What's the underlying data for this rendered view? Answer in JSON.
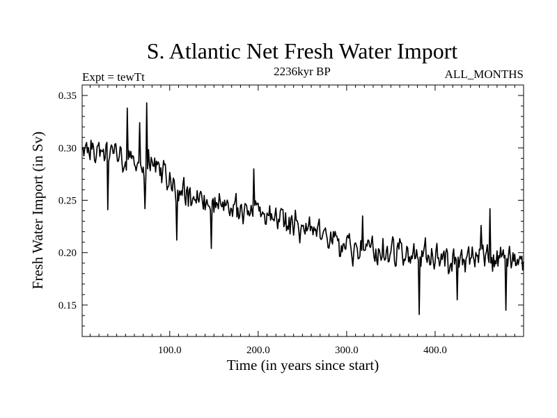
{
  "chart_data": {
    "type": "line",
    "title": "S. Atlantic Net Fresh Water Import",
    "subtitle_left": "Expt = tewTt",
    "subtitle_center": "2236kyr BP",
    "subtitle_right": "ALL_MONTHS",
    "xlabel": "Time (in years since start)",
    "ylabel": "Fresh Water Import (in Sv)",
    "xlim": [
      1,
      500
    ],
    "ylim": [
      0.12,
      0.36
    ],
    "x_ticks": [
      100,
      200,
      300,
      400
    ],
    "x_tick_labels": [
      "100.0",
      "200.0",
      "300.0",
      "400.0"
    ],
    "y_ticks": [
      0.15,
      0.2,
      0.25,
      0.3,
      0.35
    ],
    "y_tick_labels": [
      "0.15",
      "0.20",
      "0.25",
      "0.30",
      "0.35"
    ],
    "grid": false,
    "series": [
      {
        "name": "Net Fresh Water Import",
        "color": "#000000",
        "x": [
          1,
          500
        ],
        "trend_anchors": [
          [
            1,
            0.3
          ],
          [
            40,
            0.295
          ],
          [
            80,
            0.285
          ],
          [
            110,
            0.262
          ],
          [
            150,
            0.245
          ],
          [
            200,
            0.24
          ],
          [
            250,
            0.225
          ],
          [
            300,
            0.205
          ],
          [
            350,
            0.2
          ],
          [
            400,
            0.195
          ],
          [
            450,
            0.193
          ],
          [
            500,
            0.19
          ]
        ],
        "noise_amplitude": 0.018,
        "events": [
          [
            52,
            0.338
          ],
          [
            74,
            0.343
          ],
          [
            66,
            0.324
          ],
          [
            108,
            0.212
          ],
          [
            147,
            0.204
          ],
          [
            30,
            0.241
          ],
          [
            72,
            0.242
          ],
          [
            195,
            0.28
          ],
          [
            382,
            0.141
          ],
          [
            480,
            0.145
          ],
          [
            425,
            0.155
          ],
          [
            452,
            0.226
          ],
          [
            462,
            0.242
          ],
          [
            318,
            0.235
          ],
          [
            236,
            0.218
          ]
        ]
      }
    ]
  }
}
